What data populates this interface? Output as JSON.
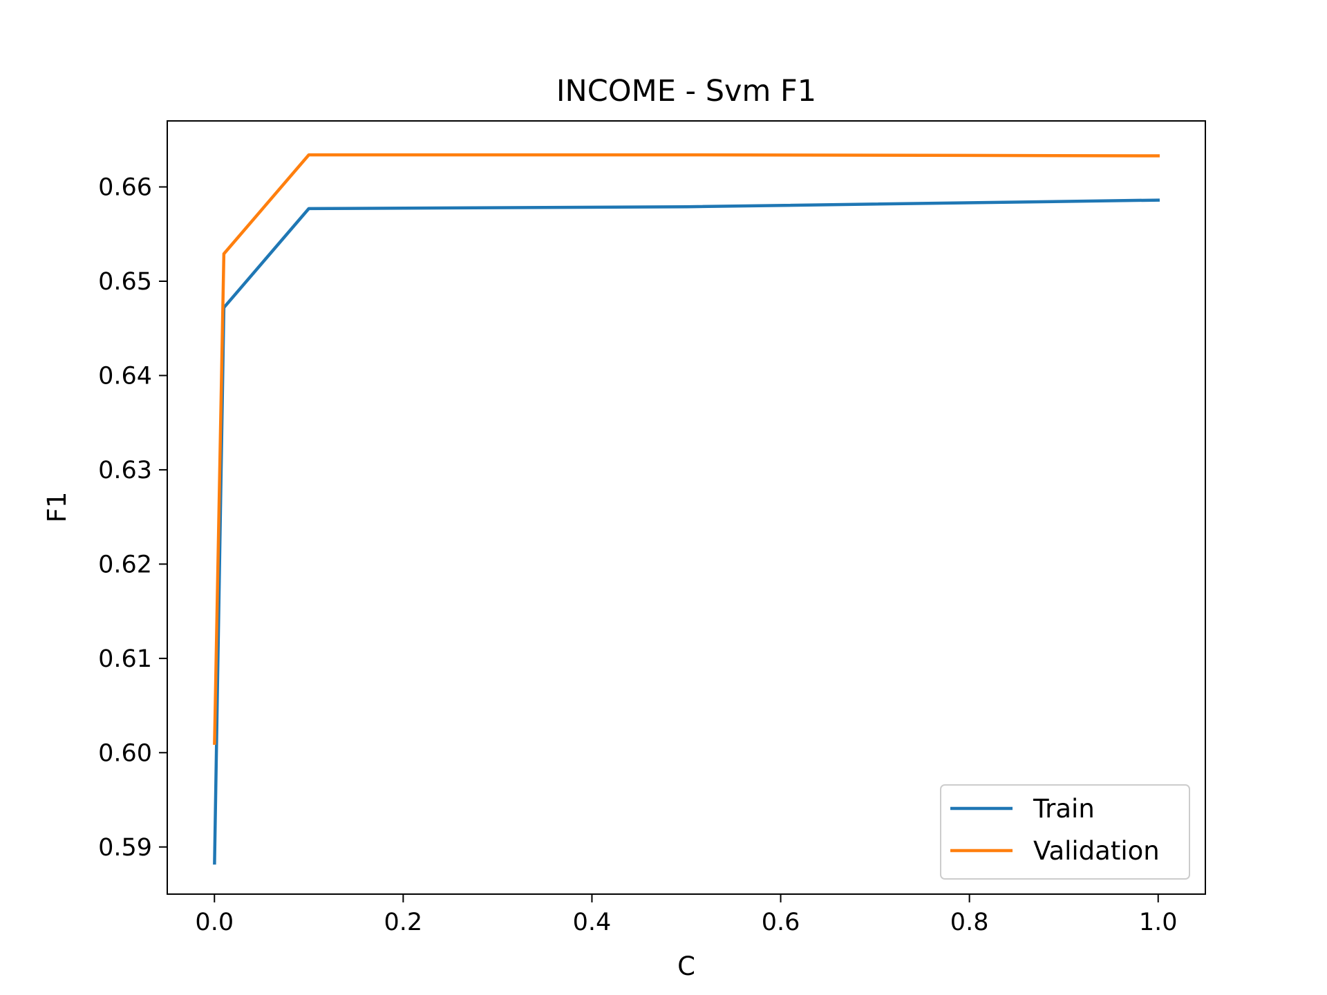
{
  "chart_data": {
    "type": "line",
    "title": "INCOME - Svm F1",
    "xlabel": "C",
    "ylabel": "F1",
    "x": [
      0.0001,
      0.01,
      0.1,
      0.5,
      1.0
    ],
    "xlim": [
      -0.05,
      1.05
    ],
    "ylim": [
      0.585,
      0.667
    ],
    "xticks": [
      0.0,
      0.2,
      0.4,
      0.6,
      0.8,
      1.0
    ],
    "xtick_labels": [
      "0.0",
      "0.2",
      "0.4",
      "0.6",
      "0.8",
      "1.0"
    ],
    "yticks": [
      0.59,
      0.6,
      0.61,
      0.62,
      0.63,
      0.64,
      0.65,
      0.66
    ],
    "ytick_labels": [
      "0.59",
      "0.60",
      "0.61",
      "0.62",
      "0.63",
      "0.64",
      "0.65",
      "0.66"
    ],
    "grid": false,
    "legend_position": "bottom-right",
    "series": [
      {
        "name": "Train",
        "color": "#1f77b4",
        "values": [
          0.5883,
          0.6472,
          0.6577,
          0.6579,
          0.6586
        ]
      },
      {
        "name": "Validation",
        "color": "#ff7f0e",
        "values": [
          0.601,
          0.6529,
          0.6634,
          0.6634,
          0.6633
        ]
      }
    ]
  }
}
